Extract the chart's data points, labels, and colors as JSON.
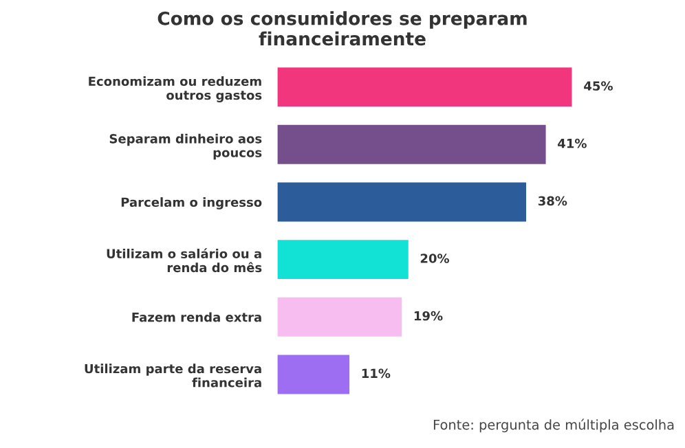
{
  "chart_data": {
    "type": "bar",
    "orientation": "horizontal",
    "title": "Como os consumidores se preparam\nfinanceiramente",
    "categories": [
      "Economizam ou reduzem\noutros gastos",
      "Separam dinheiro aos\npoucos",
      "Parcelam o ingresso",
      "Utilizam o salário ou a\nrenda do mês",
      "Fazem renda extra",
      "Utilizam parte da reserva\nfinanceira"
    ],
    "values": [
      45,
      41,
      38,
      20,
      19,
      11
    ],
    "colors": [
      "#f2367e",
      "#744f8c",
      "#2c5c9a",
      "#12e2d6",
      "#f8bdf0",
      "#9d6ef2"
    ],
    "value_labels": [
      "45%",
      "41%",
      "38%",
      "20%",
      "19%",
      "11%"
    ],
    "annotations": [
      "Fonte: pergunta de múltipla escolha"
    ],
    "grid": false,
    "legend": false
  }
}
